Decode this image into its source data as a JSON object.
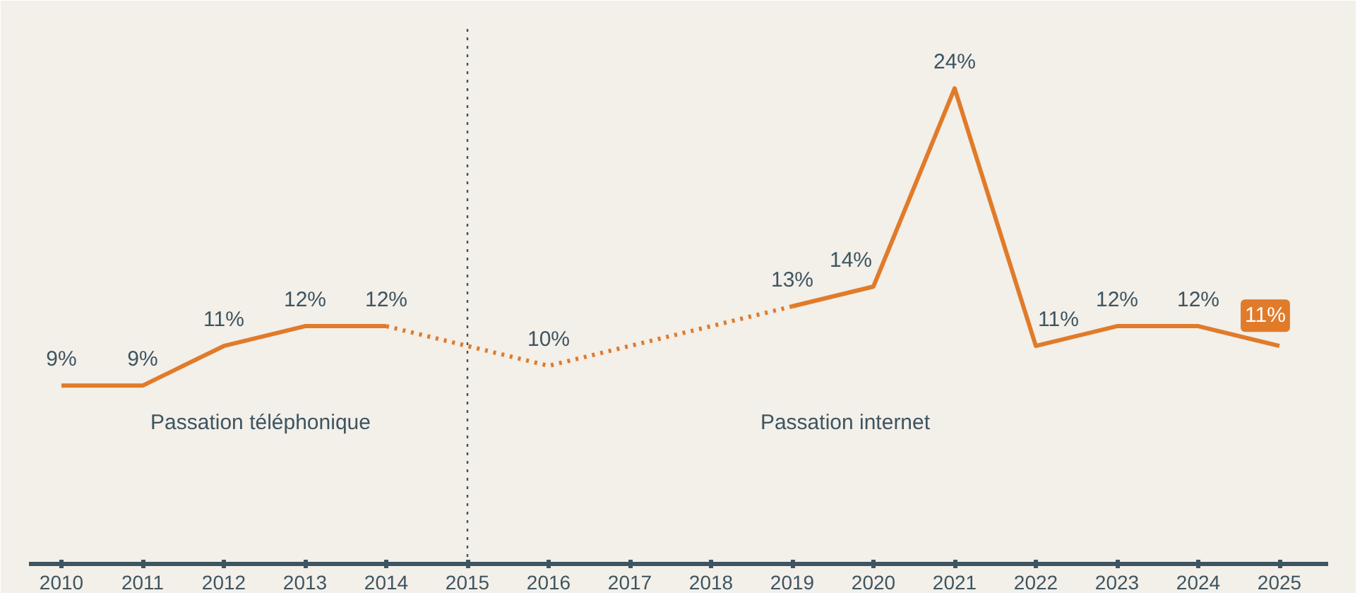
{
  "chart_data": {
    "type": "line",
    "xlim": [
      2009.6,
      2025.6
    ],
    "xticks": [
      2010,
      2011,
      2012,
      2013,
      2014,
      2015,
      2016,
      2017,
      2018,
      2019,
      2020,
      2021,
      2022,
      2023,
      2024,
      2025
    ],
    "ylim": [
      0,
      27
    ],
    "tick_labels": "x",
    "grid": false,
    "series": [
      {
        "color": "#e07b2a",
        "line_style": "solid",
        "x": [
          2010,
          2011,
          2012,
          2013,
          2014
        ],
        "values": [
          9,
          9,
          11,
          12,
          12
        ],
        "value_labels": [
          "9%",
          "9%",
          "11%",
          "12%",
          "12%"
        ]
      },
      {
        "color": "#e07b2a",
        "line_style": "dotted",
        "x": [
          2014,
          2016,
          2019
        ],
        "values": [
          12,
          10,
          13
        ],
        "value_labels": [
          null,
          "10%",
          null
        ]
      },
      {
        "color": "#e07b2a",
        "line_style": "solid",
        "x": [
          2019,
          2020,
          2021,
          2022,
          2023,
          2024,
          2025
        ],
        "values": [
          13,
          14,
          24,
          11,
          12,
          12,
          11
        ],
        "value_labels": [
          "13%",
          "14%",
          "24%",
          "11%",
          "12%",
          "12%",
          "11%"
        ]
      }
    ],
    "ref_lines": [
      {
        "axis": "x",
        "value": 2015,
        "line_style": "dotted",
        "color": "#3d5560"
      }
    ],
    "annotations": [
      "Passation téléphonique",
      "Passation internet"
    ]
  }
}
